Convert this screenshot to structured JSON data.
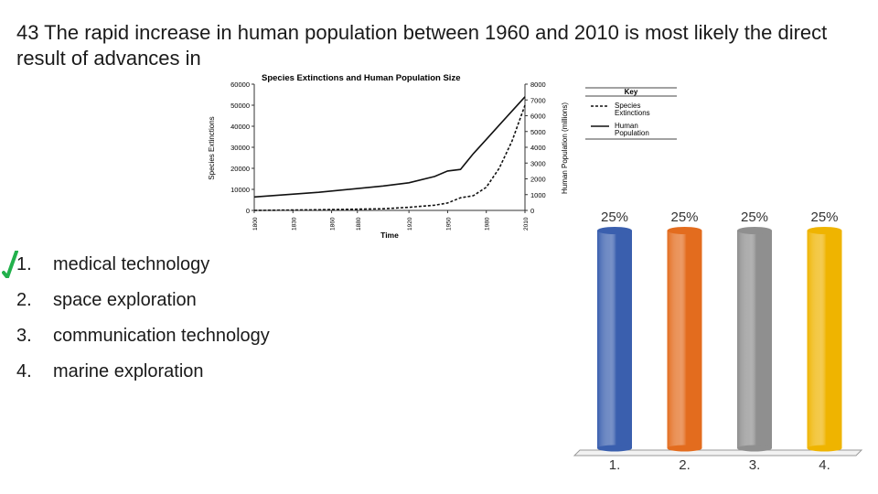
{
  "question": {
    "text": "43 The rapid increase in human population between 1960 and 2010 is most likely the direct result of advances in"
  },
  "answers": [
    {
      "number": "1.",
      "label": "medical technology",
      "correct": true
    },
    {
      "number": "2.",
      "label": "space exploration",
      "correct": false
    },
    {
      "number": "3.",
      "label": "communication technology",
      "correct": false
    },
    {
      "number": "4.",
      "label": "marine exploration",
      "correct": false
    }
  ],
  "check_color": "#22b14c",
  "figure": {
    "title": "Species Extinctions and Human Population Size",
    "left_axis_label": "Species Extinctions",
    "right_axis_label": "Human Population (millions)",
    "x_axis_label": "Time",
    "key": {
      "title": "Key",
      "items": [
        {
          "style": "dashed",
          "label_line1": "Species",
          "label_line2": "Extinctions"
        },
        {
          "style": "solid",
          "label_line1": "Human",
          "label_line2": "Population"
        }
      ]
    }
  },
  "chart_data": [
    {
      "type": "line",
      "title": "Species Extinctions and Human Population Size",
      "xlabel": "Time",
      "ylabel": "Species Extinctions",
      "y2label": "Human Population (millions)",
      "x_ticks": [
        "1800",
        "1830",
        "1860",
        "1880",
        "1920",
        "1950",
        "1980",
        "2010"
      ],
      "y_ticks": [
        "0",
        "10000",
        "20000",
        "30000",
        "40000",
        "50000",
        "60000"
      ],
      "y2_ticks": [
        "0",
        "1000",
        "2000",
        "3000",
        "4000",
        "5000",
        "6000",
        "7000",
        "8000"
      ],
      "ylim": [
        0,
        60000
      ],
      "y2lim": [
        0,
        8000
      ],
      "series": [
        {
          "name": "Species Extinctions",
          "style": "dashed",
          "axis": "left",
          "x": [
            1800,
            1850,
            1900,
            1920,
            1940,
            1950,
            1960,
            1970,
            1980,
            1990,
            2000,
            2010
          ],
          "y": [
            0,
            300,
            800,
            1500,
            2500,
            3500,
            6000,
            7000,
            11000,
            20000,
            33000,
            50000
          ]
        },
        {
          "name": "Human Population",
          "style": "solid",
          "axis": "right",
          "x": [
            1800,
            1850,
            1900,
            1920,
            1940,
            1950,
            1960,
            1970,
            1980,
            1990,
            2000,
            2010
          ],
          "y": [
            850,
            1150,
            1550,
            1750,
            2150,
            2500,
            2600,
            3600,
            4500,
            5400,
            6300,
            7200
          ]
        }
      ]
    },
    {
      "type": "bar",
      "categories": [
        "1.",
        "2.",
        "3.",
        "4."
      ],
      "values": [
        25,
        25,
        25,
        25
      ],
      "value_labels": [
        "25%",
        "25%",
        "25%",
        "25%"
      ],
      "colors": [
        "#3a5fae",
        "#e36c1e",
        "#8f8f8f",
        "#efb400"
      ],
      "ylim": [
        0,
        25
      ]
    }
  ]
}
